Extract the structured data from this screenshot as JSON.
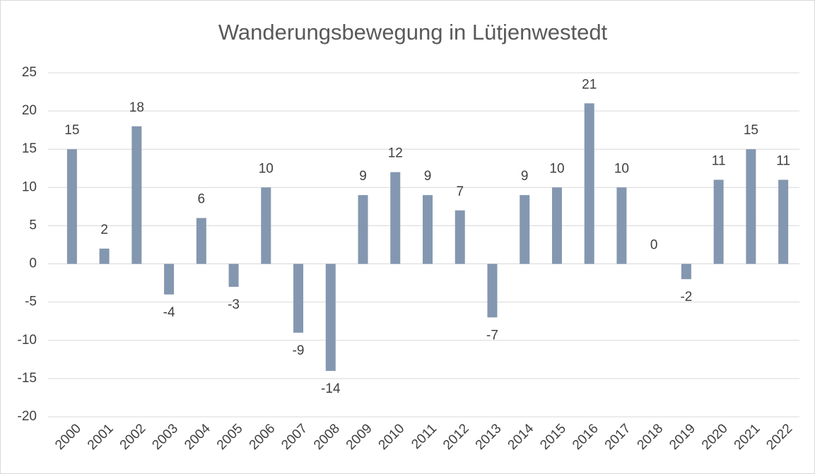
{
  "chart_data": {
    "type": "bar",
    "title": "Wanderungsbewegung in Lütjenwestedt",
    "categories": [
      "2000",
      "2001",
      "2002",
      "2003",
      "2004",
      "2005",
      "2006",
      "2007",
      "2008",
      "2009",
      "2010",
      "2011",
      "2012",
      "2013",
      "2014",
      "2015",
      "2016",
      "2017",
      "2018",
      "2019",
      "2020",
      "2021",
      "2022"
    ],
    "values": [
      15,
      2,
      18,
      -4,
      6,
      -3,
      10,
      -9,
      -14,
      9,
      12,
      9,
      7,
      -7,
      9,
      10,
      21,
      10,
      0,
      -2,
      11,
      15,
      11
    ],
    "color": "#8497b0",
    "ylim": [
      -20,
      25
    ],
    "yticks": [
      -20,
      -15,
      -10,
      -5,
      0,
      5,
      10,
      15,
      20,
      25
    ],
    "grid": true
  }
}
